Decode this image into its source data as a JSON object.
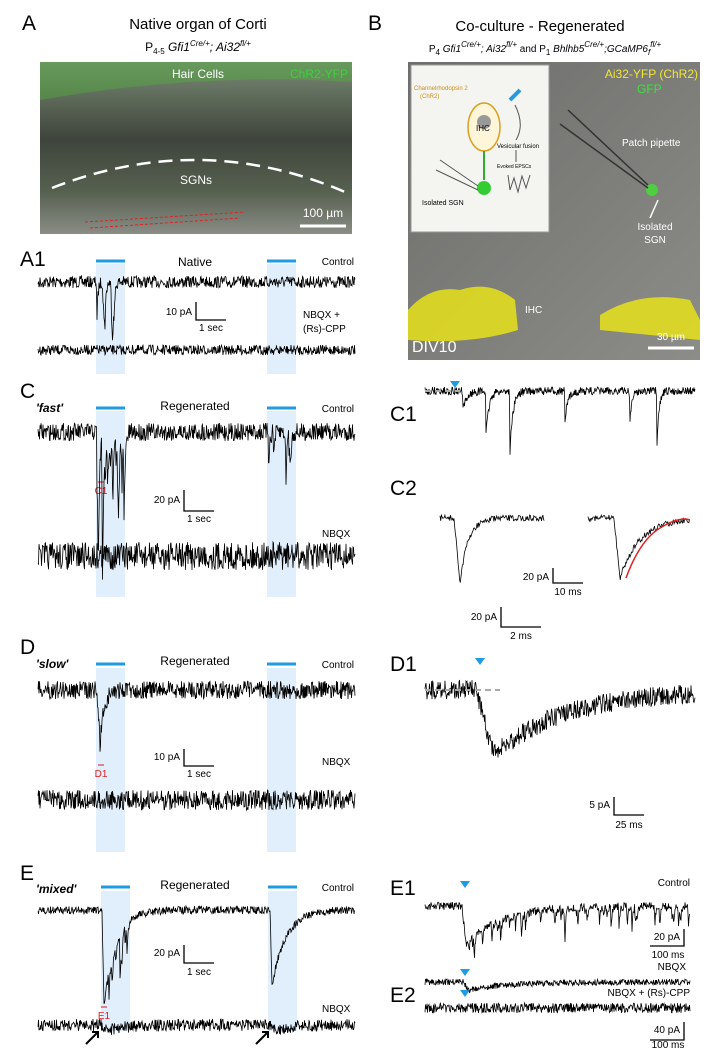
{
  "panel_a": {
    "label": "A",
    "title": "Native organ of Corti",
    "subtitle": [
      "P",
      "4-5",
      " Gfi1",
      "Cre/+",
      "; Ai32",
      "fl/+"
    ],
    "image_labels": [
      "Hair Cells",
      "ChR2-YFP",
      "SGNs",
      "100 µm"
    ]
  },
  "panel_a1": {
    "label": "A1",
    "title": "Native",
    "control": "Control",
    "scale_y": "10 pA",
    "scale_x": "1 sec",
    "drug": [
      "NBQX +",
      "(Rs)-CPP"
    ]
  },
  "panel_b": {
    "label": "B",
    "title": "Co-culture - Regenerated",
    "subtitle": [
      "P",
      "4",
      " Gfi1",
      "Cre/+",
      "; Ai32",
      "fl/+",
      " and P",
      "1",
      " Bhlhb5",
      "Cre/+",
      ";GCaMP6",
      "f",
      "fl/+"
    ],
    "legend": [
      "Ai32-YFP (ChR2)",
      "GFP"
    ],
    "image_labels": [
      "Patch pipette",
      "Isolated",
      "SGN",
      "IHC",
      "DIV10",
      "30 µm"
    ],
    "inset_labels": [
      "Channelrhodopsin 2",
      "(ChR2)",
      "IHC",
      "Vesicular fusion",
      "Evoked EPSCs",
      "Isolated SGN"
    ]
  },
  "panel_c": {
    "label": "C",
    "kind": "'fast'",
    "title": "Regenerated",
    "control": "Control",
    "scale_y": "20 pA",
    "scale_x": "1 sec",
    "marker": "C1",
    "drug": "NBQX"
  },
  "panel_c1": {
    "label": "C1",
    "scale_y": "20 pA",
    "scale_x": "10 ms"
  },
  "panel_c2": {
    "label": "C2",
    "scale_y": "20 pA",
    "scale_x": "2 ms"
  },
  "panel_d": {
    "label": "D",
    "kind": "'slow'",
    "title": "Regenerated",
    "control": "Control",
    "scale_y": "10 pA",
    "scale_x": "1 sec",
    "marker": "D1",
    "drug": "NBQX"
  },
  "panel_d1": {
    "label": "D1",
    "scale_y": "5 pA",
    "scale_x": "25 ms"
  },
  "panel_e": {
    "label": "E",
    "kind": "'mixed'",
    "title": "Regenerated",
    "control": "Control",
    "scale_y": "20 pA",
    "scale_x": "1 sec",
    "marker": "E1",
    "drug": "NBQX"
  },
  "panel_e1": {
    "label": "E1",
    "control": "Control",
    "scale_y": "20 pA",
    "scale_x": "100 ms",
    "drug": "NBQX"
  },
  "panel_e2": {
    "label": "E2",
    "drug": "NBQX + (Rs)-CPP",
    "scale_y": "40 pA",
    "scale_x": "100 ms"
  }
}
